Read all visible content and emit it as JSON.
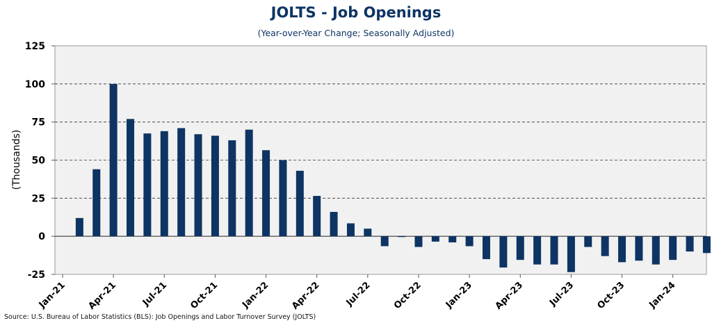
{
  "chart_data": {
    "type": "bar",
    "title": "JOLTS - Job Openings",
    "subtitle": "(Year-over-Year Change; Seasonally Adjusted)",
    "ylabel": "(Thousands)",
    "source": "Source: U.S. Bureau of Labor Statistics (BLS): Job Openings and Labor Turnover Survey (JOLTS)",
    "ylim": [
      -25,
      125
    ],
    "yticks": [
      -25,
      0,
      25,
      50,
      75,
      100,
      125
    ],
    "grid": true,
    "colors": {
      "bar": "#0d3463",
      "plot_bg": "#f1f1f1",
      "title": "#0d3463"
    },
    "categories": [
      "Jan-21",
      "Feb-21",
      "Mar-21",
      "Apr-21",
      "May-21",
      "Jun-21",
      "Jul-21",
      "Aug-21",
      "Sep-21",
      "Oct-21",
      "Nov-21",
      "Dec-21",
      "Jan-22",
      "Feb-22",
      "Mar-22",
      "Apr-22",
      "May-22",
      "Jun-22",
      "Jul-22",
      "Aug-22",
      "Sep-22",
      "Oct-22",
      "Nov-22",
      "Dec-22",
      "Jan-23",
      "Feb-23",
      "Mar-23",
      "Apr-23",
      "May-23",
      "Jun-23",
      "Jul-23",
      "Aug-23",
      "Sep-23",
      "Oct-23",
      "Nov-23",
      "Dec-23",
      "Jan-24",
      "Feb-24",
      "Mar-24"
    ],
    "tick_labels": [
      "Jan-21",
      "Apr-21",
      "Jul-21",
      "Oct-21",
      "Jan-22",
      "Apr-22",
      "Jul-22",
      "Oct-22",
      "Jan-23",
      "Apr-23",
      "Jul-23",
      "Oct-23",
      "Jan-24"
    ],
    "values": [
      0,
      12,
      44,
      100,
      77,
      67.5,
      69,
      71,
      67,
      66,
      63,
      70,
      56.5,
      50,
      43,
      26.5,
      16,
      8.5,
      5,
      -6.5,
      -0.5,
      -7,
      -3.5,
      -4,
      -6.5,
      -15,
      -20.5,
      -15.5,
      -18.5,
      -18.5,
      -23.5,
      -7,
      -13,
      -17,
      -16,
      -18.5,
      -15.5,
      -10,
      -11
    ]
  }
}
